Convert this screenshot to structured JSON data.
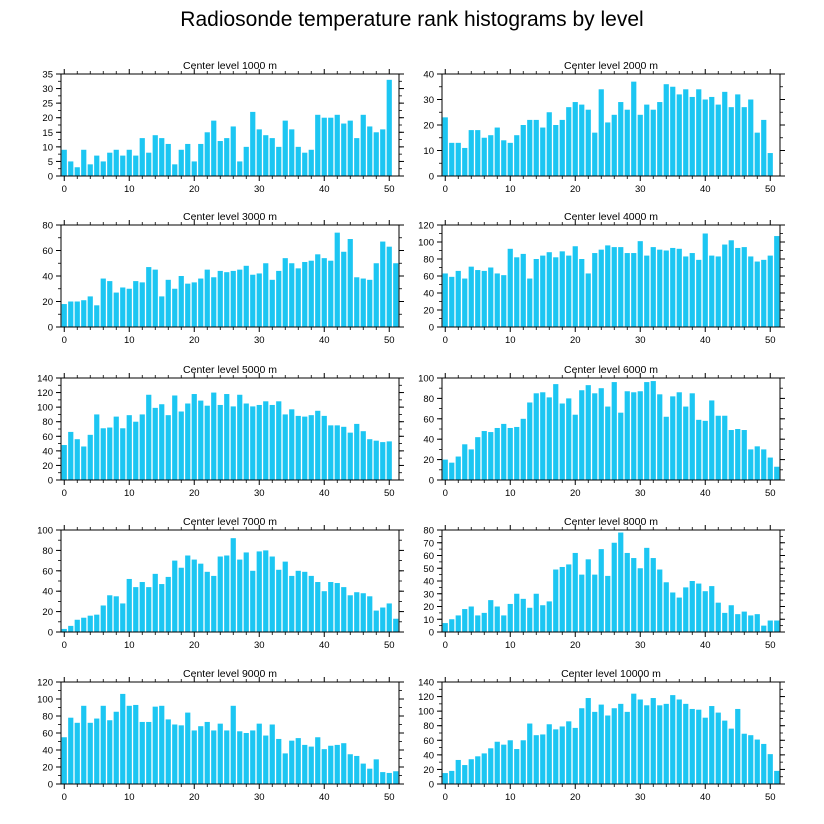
{
  "title": "Radiosonde temperature rank histograms by level",
  "colors": {
    "bar": "#1CC6F2",
    "axis": "#000000"
  },
  "chart_data": [
    {
      "type": "bar",
      "title": "Center level 1000 m",
      "ylim": [
        0,
        35
      ],
      "yticks": [
        0,
        5,
        10,
        15,
        20,
        25,
        30,
        35
      ],
      "xlim": [
        -0.5,
        51.5
      ],
      "xticks": [
        0,
        10,
        20,
        30,
        40,
        50
      ],
      "values": [
        9,
        5,
        3,
        9,
        4,
        7,
        5,
        8,
        9,
        7,
        9,
        7,
        13,
        8,
        14,
        13,
        11,
        4,
        9,
        11,
        5,
        11,
        15,
        19,
        12,
        13,
        17,
        5,
        10,
        22,
        16,
        14,
        13,
        10,
        19,
        16,
        10,
        8,
        9,
        21,
        20,
        20,
        21,
        18,
        19,
        13,
        21,
        17,
        15,
        16,
        33,
        0
      ]
    },
    {
      "type": "bar",
      "title": "Center level 2000 m",
      "ylim": [
        0,
        40
      ],
      "yticks": [
        0,
        10,
        20,
        30,
        40
      ],
      "xlim": [
        -0.5,
        51.5
      ],
      "xticks": [
        0,
        10,
        20,
        30,
        40,
        50
      ],
      "values": [
        23,
        13,
        13,
        11,
        18,
        18,
        15,
        16,
        19,
        14,
        13,
        16,
        20,
        22,
        22,
        19,
        25,
        20,
        22,
        27,
        29,
        28,
        26,
        17,
        34,
        21,
        24,
        29,
        26,
        37,
        24,
        28,
        26,
        29,
        36,
        35,
        32,
        34,
        31,
        34,
        30,
        31,
        28,
        33,
        27,
        32,
        27,
        30,
        17,
        22,
        9,
        0
      ]
    },
    {
      "type": "bar",
      "title": "Center level 3000 m",
      "ylim": [
        0,
        80
      ],
      "yticks": [
        0,
        20,
        40,
        60,
        80
      ],
      "xlim": [
        -0.5,
        51.5
      ],
      "xticks": [
        0,
        10,
        20,
        30,
        40,
        50
      ],
      "values": [
        18,
        20,
        20,
        21,
        24,
        17,
        38,
        36,
        27,
        31,
        30,
        36,
        35,
        47,
        45,
        24,
        37,
        30,
        40,
        34,
        35,
        38,
        45,
        39,
        44,
        43,
        44,
        45,
        48,
        41,
        42,
        50,
        37,
        44,
        54,
        50,
        46,
        51,
        52,
        57,
        54,
        52,
        74,
        59,
        69,
        39,
        38,
        37,
        50,
        67,
        63,
        50
      ]
    },
    {
      "type": "bar",
      "title": "Center level 4000 m",
      "ylim": [
        0,
        120
      ],
      "yticks": [
        0,
        20,
        40,
        60,
        80,
        100,
        120
      ],
      "xlim": [
        -0.5,
        51.5
      ],
      "xticks": [
        0,
        10,
        20,
        30,
        40,
        50
      ],
      "values": [
        63,
        59,
        66,
        57,
        71,
        67,
        66,
        70,
        63,
        61,
        92,
        82,
        86,
        57,
        80,
        84,
        88,
        82,
        89,
        84,
        95,
        80,
        63,
        87,
        91,
        96,
        94,
        94,
        87,
        87,
        101,
        84,
        94,
        91,
        90,
        93,
        92,
        83,
        87,
        79,
        110,
        84,
        83,
        97,
        102,
        93,
        94,
        83,
        77,
        79,
        84,
        107
      ]
    },
    {
      "type": "bar",
      "title": "Center level 5000 m",
      "ylim": [
        0,
        140
      ],
      "yticks": [
        0,
        20,
        40,
        60,
        80,
        100,
        120,
        140
      ],
      "xlim": [
        -0.5,
        51.5
      ],
      "xticks": [
        0,
        10,
        20,
        30,
        40,
        50
      ],
      "values": [
        48,
        66,
        56,
        46,
        62,
        90,
        71,
        72,
        87,
        71,
        89,
        80,
        90,
        117,
        99,
        104,
        89,
        116,
        94,
        105,
        118,
        109,
        102,
        120,
        103,
        118,
        101,
        117,
        105,
        101,
        103,
        108,
        103,
        108,
        90,
        97,
        88,
        87,
        89,
        95,
        88,
        75,
        75,
        73,
        65,
        77,
        67,
        56,
        54,
        52,
        53,
        0
      ]
    },
    {
      "type": "bar",
      "title": "Center level 6000 m",
      "ylim": [
        0,
        100
      ],
      "yticks": [
        0,
        20,
        40,
        60,
        80,
        100
      ],
      "xlim": [
        -0.5,
        51.5
      ],
      "xticks": [
        0,
        10,
        20,
        30,
        40,
        50
      ],
      "values": [
        20,
        17,
        23,
        35,
        30,
        42,
        48,
        47,
        51,
        55,
        51,
        52,
        60,
        76,
        85,
        86,
        81,
        94,
        75,
        80,
        64,
        88,
        93,
        85,
        90,
        72,
        96,
        66,
        87,
        86,
        87,
        96,
        97,
        84,
        62,
        82,
        86,
        72,
        85,
        59,
        58,
        78,
        63,
        63,
        49,
        50,
        49,
        30,
        33,
        30,
        22,
        13
      ]
    },
    {
      "type": "bar",
      "title": "Center level 7000 m",
      "ylim": [
        0,
        100
      ],
      "yticks": [
        0,
        20,
        40,
        60,
        80,
        100
      ],
      "xlim": [
        -0.5,
        51.5
      ],
      "xticks": [
        0,
        10,
        20,
        30,
        40,
        50
      ],
      "values": [
        3,
        6,
        12,
        14,
        16,
        17,
        26,
        36,
        35,
        28,
        52,
        44,
        49,
        44,
        57,
        47,
        54,
        70,
        63,
        75,
        71,
        67,
        59,
        55,
        74,
        75,
        92,
        71,
        78,
        60,
        79,
        80,
        74,
        61,
        69,
        55,
        60,
        59,
        55,
        49,
        40,
        49,
        48,
        44,
        36,
        39,
        38,
        35,
        21,
        24,
        28,
        13
      ]
    },
    {
      "type": "bar",
      "title": "Center level 8000 m",
      "ylim": [
        0,
        80
      ],
      "yticks": [
        0,
        10,
        20,
        30,
        40,
        50,
        60,
        70,
        80
      ],
      "xlim": [
        -0.5,
        51.5
      ],
      "xticks": [
        0,
        10,
        20,
        30,
        40,
        50
      ],
      "values": [
        7,
        10,
        13,
        18,
        20,
        13,
        15,
        25,
        20,
        13,
        22,
        30,
        26,
        19,
        30,
        21,
        24,
        49,
        51,
        53,
        62,
        45,
        57,
        45,
        65,
        44,
        70,
        78,
        62,
        58,
        50,
        66,
        58,
        49,
        39,
        31,
        27,
        35,
        40,
        38,
        32,
        36,
        23,
        15,
        21,
        14,
        16,
        13,
        14,
        5,
        9,
        9
      ]
    },
    {
      "type": "bar",
      "title": "Center level 9000 m",
      "ylim": [
        0,
        120
      ],
      "yticks": [
        0,
        20,
        40,
        60,
        80,
        100,
        120
      ],
      "xlim": [
        -0.5,
        51.5
      ],
      "xticks": [
        0,
        10,
        20,
        30,
        40,
        50
      ],
      "values": [
        55,
        78,
        72,
        92,
        72,
        77,
        92,
        75,
        85,
        106,
        92,
        93,
        73,
        73,
        91,
        92,
        76,
        70,
        69,
        84,
        63,
        68,
        73,
        63,
        71,
        63,
        92,
        62,
        60,
        63,
        71,
        57,
        70,
        53,
        36,
        51,
        54,
        46,
        44,
        55,
        41,
        45,
        46,
        48,
        35,
        33,
        24,
        18,
        29,
        14,
        13,
        15
      ]
    },
    {
      "type": "bar",
      "title": "Center level 10000 m",
      "ylim": [
        0,
        140
      ],
      "yticks": [
        0,
        20,
        40,
        60,
        80,
        100,
        120,
        140
      ],
      "xlim": [
        -0.5,
        51.5
      ],
      "xticks": [
        0,
        10,
        20,
        30,
        40,
        50
      ],
      "values": [
        15,
        18,
        33,
        26,
        34,
        38,
        42,
        49,
        58,
        54,
        60,
        48,
        60,
        83,
        67,
        68,
        82,
        75,
        79,
        86,
        77,
        104,
        118,
        99,
        109,
        94,
        104,
        110,
        99,
        124,
        116,
        108,
        118,
        108,
        110,
        122,
        116,
        110,
        103,
        102,
        91,
        107,
        98,
        87,
        76,
        103,
        69,
        67,
        61,
        55,
        41,
        18
      ]
    }
  ]
}
